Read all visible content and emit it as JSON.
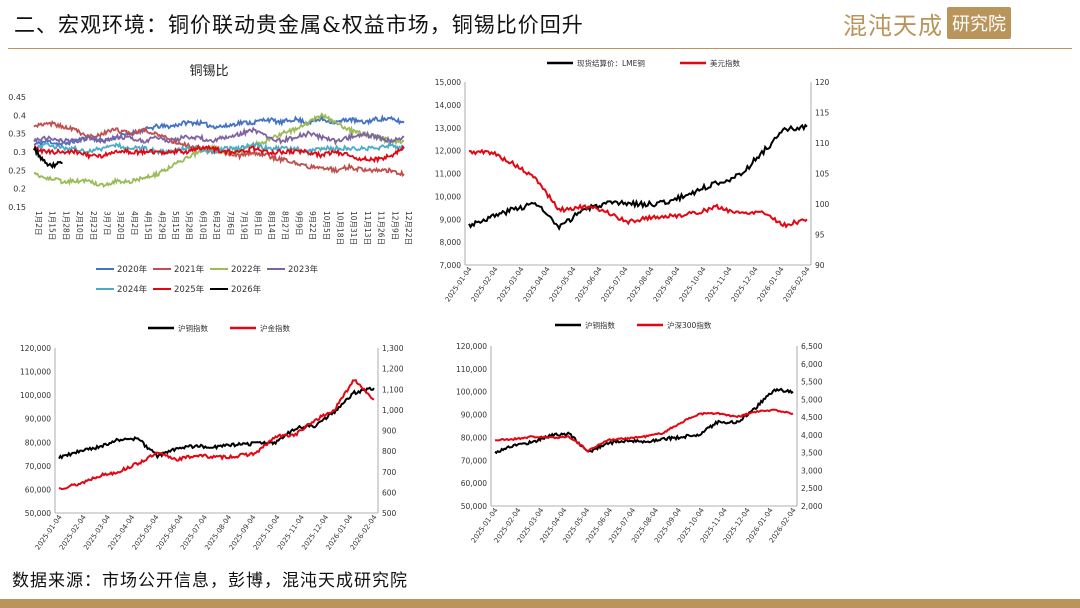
{
  "header": {
    "title": "二、宏观环境：铜价联动贵金属&权益市场，铜锡比价回升",
    "logo_text": "混沌天成",
    "logo_badge": "研究院"
  },
  "footer": {
    "source": "数据来源：市场公开信息，彭博，混沌天成研究院"
  },
  "colors": {
    "accent": "#b9955c"
  },
  "chart_data": [
    {
      "id": "cu-sn-ratio",
      "type": "line",
      "title": "铜锡比",
      "x_ticks": [
        "1月2日",
        "1月15日",
        "1月28日",
        "2月10日",
        "2月23日",
        "3月7日",
        "3月20日",
        "4月2日",
        "4月15日",
        "4月29日",
        "5月15日",
        "5月28日",
        "6月10日",
        "6月23日",
        "7月6日",
        "7月19日",
        "8月1日",
        "8月14日",
        "8月27日",
        "9月9日",
        "9月22日",
        "10月5日",
        "10月18日",
        "10月31日",
        "11月13日",
        "11月26日",
        "12月9日",
        "12月22日"
      ],
      "x_tick_labels": [
        "1月2日",
        "1月15日",
        "1月28日",
        "2月10日",
        "2月23日",
        "3月7日",
        "3月20日",
        "4月2日",
        "4月15日",
        "4月29日",
        "5月15日",
        "5月28日",
        "6月10日",
        "6月23日",
        "7月6日",
        "7月19日",
        "8月1日",
        "8月14日",
        "8月27日",
        "9月9日",
        "9月22日",
        "10月5日",
        "10月18日",
        "10月31日",
        "11月13日",
        "11月26日",
        "12月9日",
        "12月22日"
      ],
      "y_ticks": [
        0.15,
        0.2,
        0.25,
        0.3,
        0.35,
        0.4,
        0.45
      ],
      "y_tick_labels": [
        "0.15",
        "0.2",
        "0.25",
        "0.3",
        "0.35",
        "0.4",
        "0.45"
      ],
      "ylim": [
        0.15,
        0.45
      ],
      "legend_position": "bottom",
      "series": [
        {
          "name": "2020年",
          "color": "#4472c4",
          "values": [
            0.32,
            0.33,
            0.32,
            0.33,
            0.34,
            0.33,
            0.34,
            0.35,
            0.36,
            0.37,
            0.37,
            0.38,
            0.38,
            0.37,
            0.37,
            0.38,
            0.38,
            0.39,
            0.38,
            0.39,
            0.38,
            0.39,
            0.38,
            0.39,
            0.38,
            0.39,
            0.39,
            0.38
          ]
        },
        {
          "name": "2021年",
          "color": "#c0504d",
          "values": [
            0.37,
            0.38,
            0.37,
            0.36,
            0.34,
            0.35,
            0.36,
            0.35,
            0.36,
            0.35,
            0.33,
            0.32,
            0.31,
            0.3,
            0.3,
            0.29,
            0.3,
            0.29,
            0.28,
            0.27,
            0.26,
            0.26,
            0.25,
            0.26,
            0.25,
            0.25,
            0.25,
            0.24
          ]
        },
        {
          "name": "2022年",
          "color": "#9bbb59",
          "values": [
            0.24,
            0.23,
            0.22,
            0.22,
            0.22,
            0.21,
            0.22,
            0.22,
            0.23,
            0.24,
            0.26,
            0.28,
            0.3,
            0.31,
            0.3,
            0.3,
            0.32,
            0.33,
            0.35,
            0.36,
            0.38,
            0.4,
            0.38,
            0.36,
            0.35,
            0.34,
            0.33,
            0.33
          ]
        },
        {
          "name": "2023年",
          "color": "#8064a2",
          "values": [
            0.33,
            0.34,
            0.33,
            0.33,
            0.34,
            0.33,
            0.34,
            0.34,
            0.33,
            0.34,
            0.33,
            0.34,
            0.34,
            0.33,
            0.34,
            0.35,
            0.36,
            0.34,
            0.33,
            0.34,
            0.35,
            0.34,
            0.33,
            0.34,
            0.35,
            0.34,
            0.33,
            0.34
          ]
        },
        {
          "name": "2024年",
          "color": "#4bacc6",
          "values": [
            0.31,
            0.32,
            0.31,
            0.31,
            0.3,
            0.31,
            0.32,
            0.31,
            0.31,
            0.3,
            0.3,
            0.31,
            0.31,
            0.3,
            0.31,
            0.31,
            0.32,
            0.31,
            0.31,
            0.31,
            0.3,
            0.31,
            0.31,
            0.31,
            0.31,
            0.31,
            0.32,
            0.31
          ]
        },
        {
          "name": "2025年",
          "color": "#e30613",
          "values": [
            0.31,
            0.3,
            0.3,
            0.3,
            0.29,
            0.29,
            0.3,
            0.3,
            0.3,
            0.3,
            0.3,
            0.3,
            0.31,
            0.31,
            0.3,
            0.3,
            0.31,
            0.3,
            0.3,
            0.3,
            0.3,
            0.29,
            0.3,
            0.29,
            0.28,
            0.28,
            0.29,
            0.31
          ]
        },
        {
          "name": "2026年",
          "color": "#000000",
          "values": [
            0.31,
            0.26,
            0.27,
            null,
            null,
            null,
            null,
            null,
            null,
            null,
            null,
            null,
            null,
            null,
            null,
            null,
            null,
            null,
            null,
            null,
            null,
            null,
            null,
            null,
            null,
            null,
            null,
            null
          ]
        }
      ]
    },
    {
      "id": "lme-copper-usd",
      "type": "line",
      "x_tick_labels": [
        "2025-01-04",
        "2025-02-04",
        "2025-03-04",
        "2025-04-04",
        "2025-05-04",
        "2025-06-04",
        "2025-07-04",
        "2025-08-04",
        "2025-09-04",
        "2025-10-04",
        "2025-11-04",
        "2025-12-04",
        "2026-01-04",
        "2026-02-04"
      ],
      "y_left_ticks": [
        7000,
        8000,
        9000,
        10000,
        11000,
        12000,
        13000,
        14000,
        15000
      ],
      "y_left_tick_labels": [
        "7,000",
        "8,000",
        "9,000",
        "10,000",
        "11,000",
        "12,000",
        "13,000",
        "14,000",
        "15,000"
      ],
      "y_left_lim": [
        7000,
        15000
      ],
      "y_right_ticks": [
        90,
        95,
        100,
        105,
        110,
        115,
        120
      ],
      "y_right_tick_labels": [
        "90",
        "95",
        "100",
        "105",
        "110",
        "115",
        "120"
      ],
      "y_right_lim": [
        90,
        120
      ],
      "legend_position": "top",
      "series": [
        {
          "name": "现货结算价：LME铜",
          "color": "#000000",
          "axis": "left",
          "values": [
            8750,
            9100,
            9450,
            9700,
            8600,
            9400,
            9650,
            9700,
            9650,
            9800,
            10200,
            10600,
            10900,
            11900,
            12900,
            13050
          ]
        },
        {
          "name": "美元指数",
          "color": "#e30613",
          "axis": "right",
          "values": [
            108.5,
            108.5,
            106.5,
            104,
            99,
            99.5,
            99,
            97,
            97.8,
            98,
            98.5,
            99.5,
            98.5,
            98.8,
            96.5,
            97.5
          ]
        }
      ]
    },
    {
      "id": "shfe-cu-au",
      "type": "line",
      "x_tick_labels": [
        "2025-01-04",
        "2025-02-04",
        "2025-03-04",
        "2025-04-04",
        "2025-05-04",
        "2025-06-04",
        "2025-07-04",
        "2025-08-04",
        "2025-09-04",
        "2025-10-04",
        "2025-11-04",
        "2025-12-04",
        "2026-01-04",
        "2026-02-04"
      ],
      "y_left_ticks": [
        50000,
        60000,
        70000,
        80000,
        90000,
        100000,
        110000,
        120000
      ],
      "y_left_tick_labels": [
        "50,000",
        "60,000",
        "70,000",
        "80,000",
        "90,000",
        "100,000",
        "110,000",
        "120,000"
      ],
      "y_left_lim": [
        50000,
        120000
      ],
      "y_right_ticks": [
        500,
        600,
        700,
        800,
        900,
        1000,
        1100,
        1200,
        1300
      ],
      "y_right_tick_labels": [
        "500",
        "600",
        "700",
        "800",
        "900",
        "1,000",
        "1,100",
        "1,200",
        "1,300"
      ],
      "y_right_lim": [
        500,
        1300
      ],
      "legend_position": "top",
      "series": [
        {
          "name": "沪铜指数",
          "color": "#000000",
          "axis": "left",
          "values": [
            73500,
            76000,
            78000,
            81000,
            81500,
            74000,
            77500,
            78500,
            78000,
            79000,
            79500,
            80000,
            86000,
            87000,
            93000,
            101000,
            103000
          ]
        },
        {
          "name": "沪金指数",
          "color": "#e30613",
          "axis": "right",
          "values": [
            620,
            640,
            680,
            700,
            740,
            790,
            760,
            780,
            770,
            775,
            790,
            870,
            880,
            950,
            1000,
            1150,
            1050
          ]
        }
      ]
    },
    {
      "id": "shfe-cu-csi300",
      "type": "line",
      "x_tick_labels": [
        "2025-01-04",
        "2025-02-04",
        "2025-03-04",
        "2025-04-04",
        "2025-05-04",
        "2025-06-04",
        "2025-07-04",
        "2025-08-04",
        "2025-09-04",
        "2025-10-04",
        "2025-11-04",
        "2025-12-04",
        "2026-01-04",
        "2026-02-04"
      ],
      "y_left_ticks": [
        50000,
        60000,
        70000,
        80000,
        90000,
        100000,
        110000,
        120000
      ],
      "y_left_tick_labels": [
        "50,000",
        "60,000",
        "70,000",
        "80,000",
        "90,000",
        "100,000",
        "110,000",
        "120,000"
      ],
      "y_left_lim": [
        50000,
        120000
      ],
      "y_right_ticks": [
        2000,
        2500,
        3000,
        3500,
        4000,
        4500,
        5000,
        5500,
        6000,
        6500
      ],
      "y_right_tick_labels": [
        "2,000",
        "2,500",
        "3,000",
        "3,500",
        "4,000",
        "4,500",
        "5,000",
        "5,500",
        "6,000",
        "6,500"
      ],
      "y_right_lim": [
        2000,
        6500
      ],
      "legend_position": "top",
      "series": [
        {
          "name": "沪铜指数",
          "color": "#000000",
          "axis": "left",
          "values": [
            73500,
            76500,
            78000,
            81000,
            81500,
            73500,
            77500,
            78500,
            78000,
            79500,
            80000,
            81500,
            87000,
            86500,
            93000,
            101000,
            100000
          ]
        },
        {
          "name": "沪深300指数",
          "color": "#e30613",
          "axis": "right",
          "values": [
            3850,
            3880,
            3950,
            3920,
            3950,
            3550,
            3850,
            3900,
            3950,
            4050,
            4350,
            4600,
            4600,
            4500,
            4650,
            4700,
            4600
          ]
        }
      ]
    }
  ]
}
